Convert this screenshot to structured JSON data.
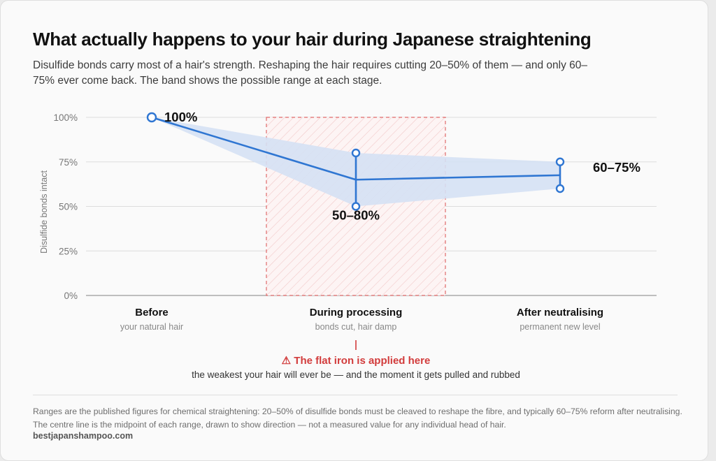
{
  "title": "What actually happens to your hair during Japanese straightening",
  "subtitle": "Disulfide bonds carry most of a hair's strength. Reshaping the hair requires cutting 20–50% of them — and only 60–75% ever come back. The band shows the possible range at each stage.",
  "chart_data": {
    "type": "line",
    "ylabel": "Disulfide bonds intact",
    "ylim": [
      0,
      100
    ],
    "yticks": [
      0,
      25,
      50,
      75,
      100
    ],
    "ytick_labels": [
      "0%",
      "25%",
      "50%",
      "75%",
      "100%"
    ],
    "grid": true,
    "categories": [
      {
        "label": "Before",
        "sublabel": "your natural hair"
      },
      {
        "label": "During processing",
        "sublabel": "bonds cut, hair damp"
      },
      {
        "label": "After neutralising",
        "sublabel": "permanent new level"
      }
    ],
    "series": [
      {
        "low": 100,
        "high": 100,
        "mid": 100,
        "value_label": "100%"
      },
      {
        "low": 50,
        "high": 80,
        "mid": 65,
        "value_label": "50–80%"
      },
      {
        "low": 60,
        "high": 75,
        "mid": 67.5,
        "value_label": "60–75%"
      }
    ],
    "highlight_category": 1,
    "annotation": {
      "title": "⚠ The flat iron is applied here",
      "text": "the weakest your hair will ever be — and the moment it gets pulled and rubbed"
    },
    "colors": {
      "line": "#2f76d2",
      "band": "#d5e1f4",
      "highlight": "#e06b6b",
      "warning": "#d23c3c"
    }
  },
  "footnote": "Ranges are the published figures for chemical straightening: 20–50% of disulfide bonds must be cleaved to reshape the fibre, and typically 60–75% reform after neutralising. The centre line is the midpoint of each range, drawn to show direction — not a measured value for any individual head of hair.",
  "source": "bestjapanshampoo.com"
}
